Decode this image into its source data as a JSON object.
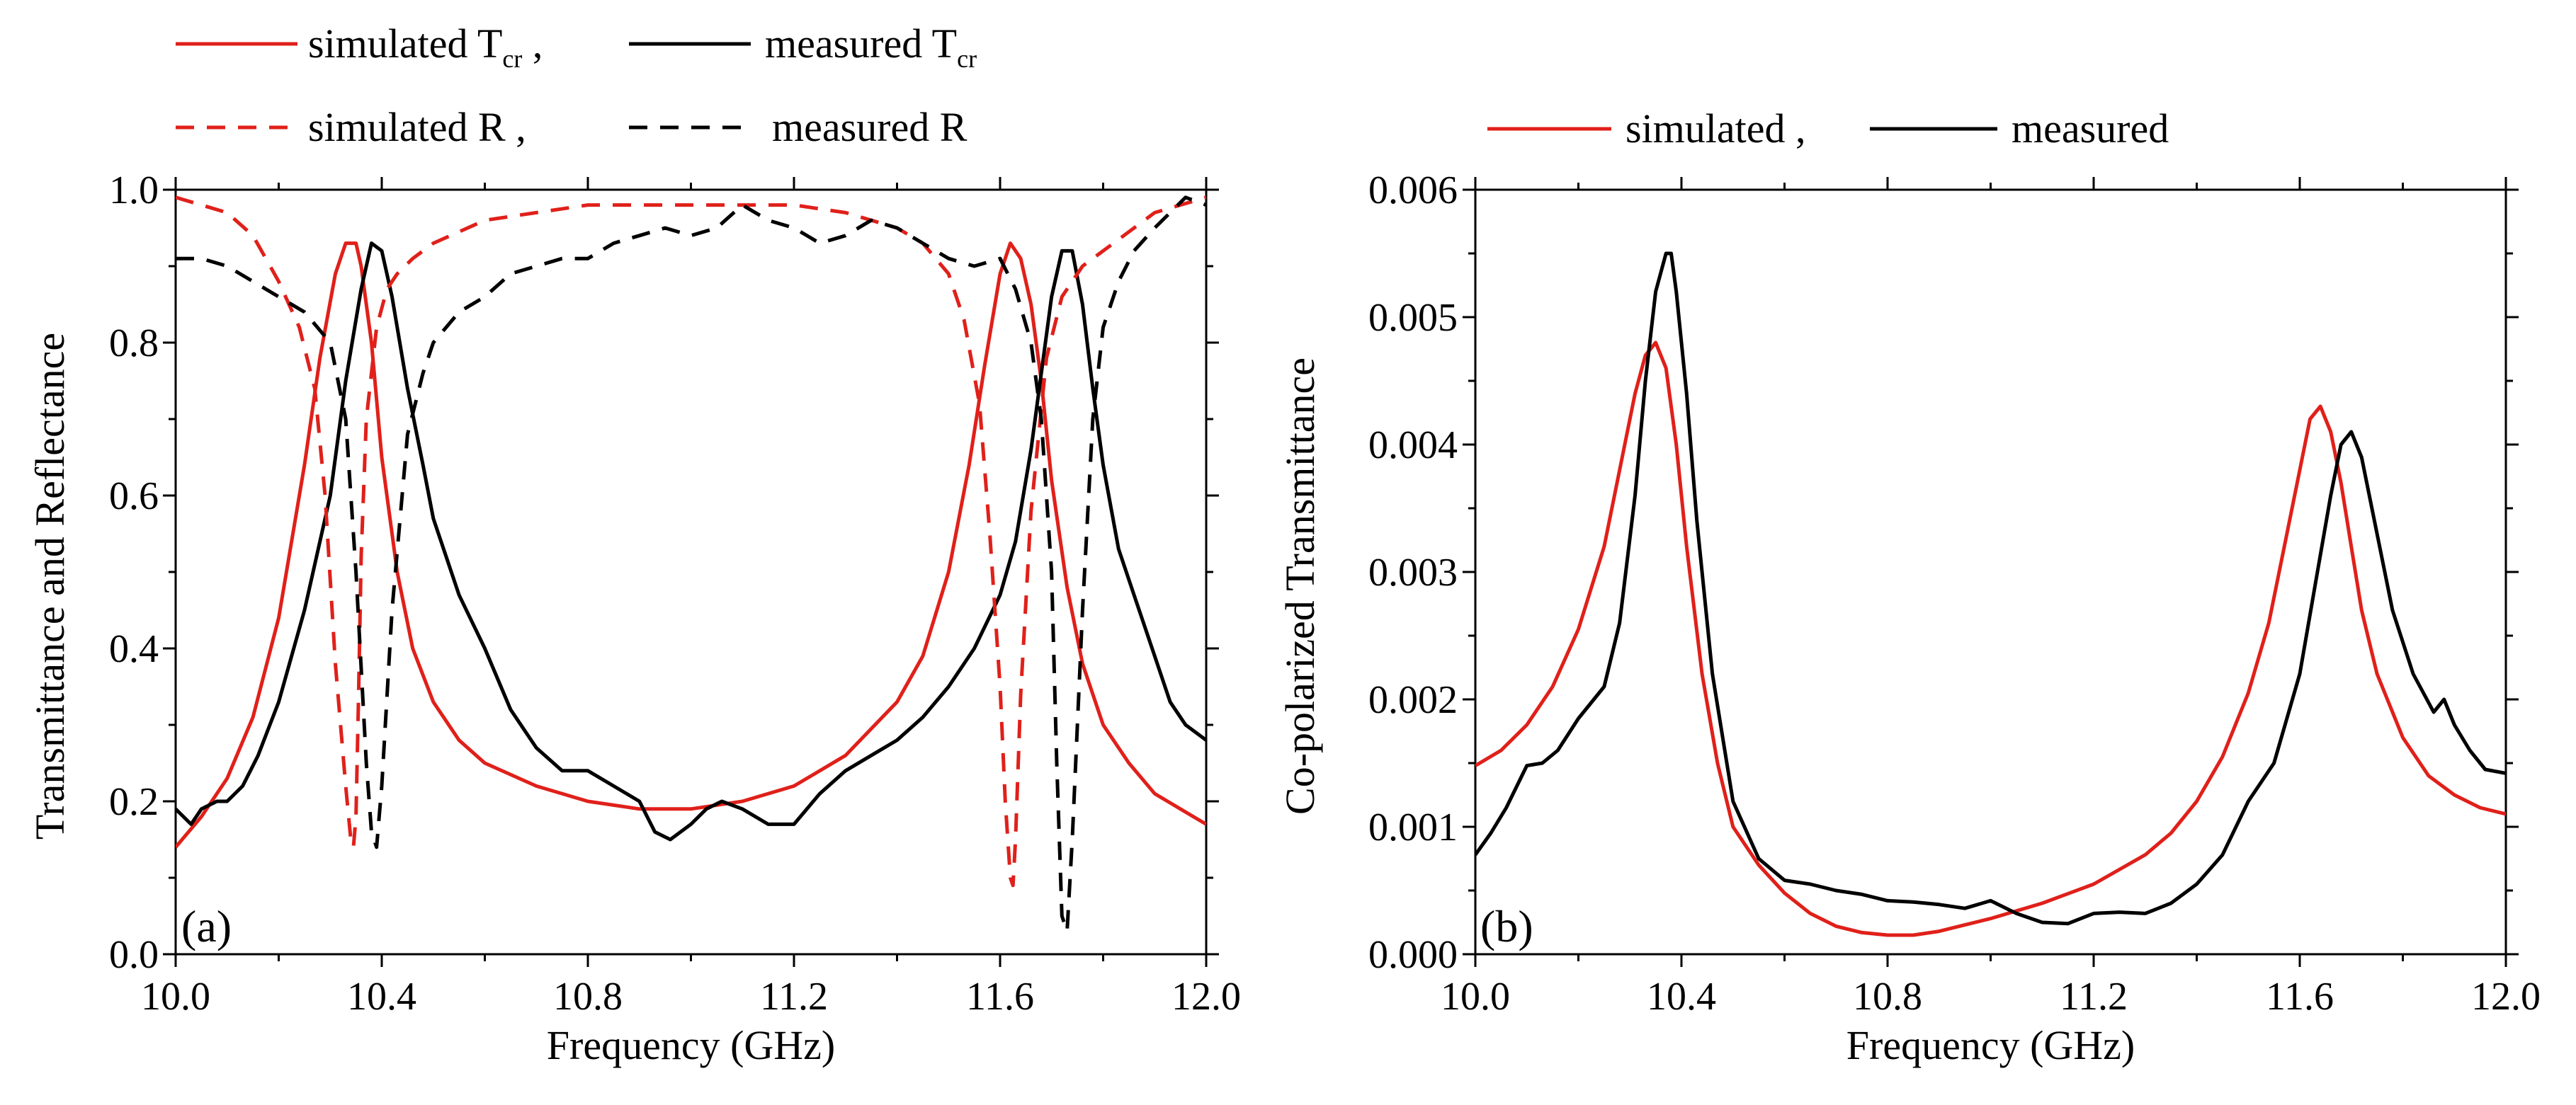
{
  "chart_data": [
    {
      "panel": "(a)",
      "type": "line",
      "xlabel": "Frequency (GHz)",
      "ylabel": "Transmittance and Reflectance",
      "xlim": [
        10.0,
        12.0
      ],
      "ylim": [
        0.0,
        1.0
      ],
      "x_ticks": [
        "10.0",
        "10.4",
        "10.8",
        "11.2",
        "11.6",
        "12.0"
      ],
      "y_ticks": [
        "0.0",
        "0.2",
        "0.4",
        "0.6",
        "0.8",
        "1.0"
      ],
      "legend": {
        "placement": "above-top",
        "entries": [
          {
            "label": "simulated T",
            "sub": "cr",
            "suffix": " ,",
            "color": "#e0201a",
            "dash": "solid"
          },
          {
            "label": "measured T",
            "sub": "cr",
            "suffix": "",
            "color": "#000000",
            "dash": "solid"
          },
          {
            "label": "simulated R",
            "sub": "",
            "suffix": "   ,",
            "color": "#e0201a",
            "dash": "dashed"
          },
          {
            "label": "measured R",
            "sub": "",
            "suffix": "",
            "color": "#000000",
            "dash": "dashed"
          }
        ]
      },
      "series": [
        {
          "name": "simulated Tcr",
          "color": "#e0201a",
          "dash": "solid",
          "x": [
            10.0,
            10.05,
            10.1,
            10.15,
            10.2,
            10.25,
            10.28,
            10.31,
            10.33,
            10.35,
            10.36,
            10.38,
            10.4,
            10.43,
            10.46,
            10.5,
            10.55,
            10.6,
            10.7,
            10.8,
            10.9,
            11.0,
            11.1,
            11.2,
            11.3,
            11.4,
            11.45,
            11.5,
            11.54,
            11.57,
            11.6,
            11.62,
            11.64,
            11.66,
            11.68,
            11.7,
            11.73,
            11.76,
            11.8,
            11.85,
            11.9,
            11.95,
            12.0
          ],
          "y": [
            0.14,
            0.18,
            0.23,
            0.31,
            0.44,
            0.64,
            0.78,
            0.89,
            0.93,
            0.93,
            0.9,
            0.8,
            0.65,
            0.5,
            0.4,
            0.33,
            0.28,
            0.25,
            0.22,
            0.2,
            0.19,
            0.19,
            0.2,
            0.22,
            0.26,
            0.33,
            0.39,
            0.5,
            0.64,
            0.77,
            0.89,
            0.93,
            0.91,
            0.85,
            0.75,
            0.62,
            0.48,
            0.38,
            0.3,
            0.25,
            0.21,
            0.19,
            0.17
          ]
        },
        {
          "name": "measured Tcr",
          "color": "#000000",
          "dash": "solid",
          "x": [
            10.0,
            10.03,
            10.05,
            10.08,
            10.1,
            10.13,
            10.16,
            10.2,
            10.25,
            10.3,
            10.33,
            10.36,
            10.38,
            10.4,
            10.42,
            10.45,
            10.48,
            10.5,
            10.55,
            10.6,
            10.65,
            10.7,
            10.75,
            10.8,
            10.85,
            10.9,
            10.93,
            10.96,
            11.0,
            11.03,
            11.06,
            11.1,
            11.15,
            11.2,
            11.25,
            11.3,
            11.35,
            11.4,
            11.45,
            11.5,
            11.55,
            11.6,
            11.63,
            11.66,
            11.68,
            11.7,
            11.72,
            11.74,
            11.76,
            11.78,
            11.8,
            11.83,
            11.86,
            11.9,
            11.93,
            11.96,
            12.0
          ],
          "y": [
            0.19,
            0.17,
            0.19,
            0.2,
            0.2,
            0.22,
            0.26,
            0.33,
            0.45,
            0.6,
            0.75,
            0.87,
            0.93,
            0.92,
            0.86,
            0.74,
            0.64,
            0.57,
            0.47,
            0.4,
            0.32,
            0.27,
            0.24,
            0.24,
            0.22,
            0.2,
            0.16,
            0.15,
            0.17,
            0.19,
            0.2,
            0.19,
            0.17,
            0.17,
            0.21,
            0.24,
            0.26,
            0.28,
            0.31,
            0.35,
            0.4,
            0.47,
            0.54,
            0.66,
            0.76,
            0.86,
            0.92,
            0.92,
            0.85,
            0.74,
            0.64,
            0.53,
            0.47,
            0.39,
            0.33,
            0.3,
            0.28
          ]
        },
        {
          "name": "simulated R",
          "color": "#e0201a",
          "dash": "dashed",
          "x": [
            10.0,
            10.1,
            10.15,
            10.2,
            10.24,
            10.27,
            10.29,
            10.31,
            10.33,
            10.34,
            10.345,
            10.35,
            10.355,
            10.36,
            10.37,
            10.39,
            10.41,
            10.43,
            10.46,
            10.5,
            10.6,
            10.7,
            10.8,
            10.9,
            11.0,
            11.1,
            11.2,
            11.3,
            11.4,
            11.45,
            11.5,
            11.53,
            11.56,
            11.58,
            11.6,
            11.61,
            11.62,
            11.625,
            11.63,
            11.64,
            11.66,
            11.69,
            11.72,
            11.76,
            11.8,
            11.9,
            12.0
          ],
          "y": [
            0.99,
            0.97,
            0.94,
            0.88,
            0.82,
            0.74,
            0.6,
            0.38,
            0.22,
            0.15,
            0.14,
            0.18,
            0.34,
            0.52,
            0.7,
            0.82,
            0.87,
            0.89,
            0.91,
            0.93,
            0.96,
            0.97,
            0.98,
            0.98,
            0.98,
            0.98,
            0.98,
            0.97,
            0.95,
            0.93,
            0.89,
            0.83,
            0.72,
            0.55,
            0.35,
            0.2,
            0.1,
            0.09,
            0.15,
            0.34,
            0.58,
            0.78,
            0.86,
            0.9,
            0.92,
            0.97,
            0.99
          ]
        },
        {
          "name": "measured R",
          "color": "#000000",
          "dash": "dashed",
          "x": [
            10.0,
            10.05,
            10.1,
            10.15,
            10.2,
            10.25,
            10.3,
            10.33,
            10.35,
            10.37,
            10.38,
            10.39,
            10.4,
            10.42,
            10.45,
            10.48,
            10.5,
            10.55,
            10.6,
            10.65,
            10.7,
            10.75,
            10.8,
            10.85,
            10.9,
            10.95,
            11.0,
            11.05,
            11.1,
            11.15,
            11.2,
            11.25,
            11.3,
            11.35,
            11.4,
            11.45,
            11.5,
            11.55,
            11.6,
            11.63,
            11.66,
            11.68,
            11.7,
            11.71,
            11.72,
            11.73,
            11.74,
            11.76,
            11.78,
            11.8,
            11.83,
            11.86,
            11.9,
            11.93,
            11.96,
            12.0
          ],
          "y": [
            0.91,
            0.91,
            0.9,
            0.88,
            0.86,
            0.84,
            0.8,
            0.7,
            0.5,
            0.25,
            0.16,
            0.14,
            0.22,
            0.45,
            0.68,
            0.76,
            0.8,
            0.84,
            0.86,
            0.89,
            0.9,
            0.91,
            0.91,
            0.93,
            0.94,
            0.95,
            0.94,
            0.95,
            0.98,
            0.96,
            0.95,
            0.93,
            0.94,
            0.96,
            0.95,
            0.93,
            0.91,
            0.9,
            0.91,
            0.87,
            0.8,
            0.7,
            0.5,
            0.25,
            0.05,
            0.03,
            0.15,
            0.45,
            0.7,
            0.82,
            0.88,
            0.92,
            0.95,
            0.97,
            0.99,
            0.98
          ]
        }
      ]
    },
    {
      "panel": "(b)",
      "type": "line",
      "xlabel": "Frequency (GHz)",
      "ylabel": "Co-polarized Transmittance",
      "xlim": [
        10.0,
        12.0
      ],
      "ylim": [
        0.0,
        0.006
      ],
      "x_ticks": [
        "10.0",
        "10.4",
        "10.8",
        "11.2",
        "11.6",
        "12.0"
      ],
      "y_ticks": [
        "0.000",
        "0.001",
        "0.002",
        "0.003",
        "0.004",
        "0.005",
        "0.006"
      ],
      "legend": {
        "placement": "above-top",
        "entries": [
          {
            "label": "simulated",
            "sub": "",
            "suffix": " ,",
            "color": "#e0201a",
            "dash": "solid"
          },
          {
            "label": "measured",
            "sub": "",
            "suffix": "",
            "color": "#000000",
            "dash": "solid"
          }
        ]
      },
      "series": [
        {
          "name": "simulated",
          "color": "#e0201a",
          "dash": "solid",
          "x": [
            10.0,
            10.05,
            10.1,
            10.15,
            10.2,
            10.25,
            10.28,
            10.31,
            10.33,
            10.35,
            10.37,
            10.39,
            10.41,
            10.44,
            10.47,
            10.5,
            10.55,
            10.6,
            10.65,
            10.7,
            10.75,
            10.8,
            10.85,
            10.9,
            10.95,
            11.0,
            11.1,
            11.2,
            11.3,
            11.35,
            11.4,
            11.45,
            11.5,
            11.54,
            11.57,
            11.6,
            11.62,
            11.64,
            11.66,
            11.68,
            11.7,
            11.72,
            11.75,
            11.8,
            11.85,
            11.9,
            11.95,
            12.0
          ],
          "y": [
            0.00148,
            0.0016,
            0.0018,
            0.0021,
            0.00255,
            0.0032,
            0.0038,
            0.0044,
            0.0047,
            0.0048,
            0.0046,
            0.004,
            0.0032,
            0.0022,
            0.0015,
            0.001,
            0.0007,
            0.00048,
            0.00032,
            0.00022,
            0.00017,
            0.00015,
            0.00015,
            0.00018,
            0.00023,
            0.00028,
            0.0004,
            0.00055,
            0.00078,
            0.00095,
            0.0012,
            0.00155,
            0.00205,
            0.0026,
            0.0032,
            0.0038,
            0.0042,
            0.0043,
            0.0041,
            0.0037,
            0.0032,
            0.0027,
            0.0022,
            0.0017,
            0.0014,
            0.00125,
            0.00115,
            0.0011
          ]
        },
        {
          "name": "measured",
          "color": "#000000",
          "dash": "solid",
          "x": [
            10.0,
            10.03,
            10.06,
            10.1,
            10.13,
            10.16,
            10.2,
            10.25,
            10.28,
            10.31,
            10.33,
            10.35,
            10.37,
            10.38,
            10.39,
            10.41,
            10.43,
            10.46,
            10.5,
            10.55,
            10.6,
            10.65,
            10.7,
            10.75,
            10.8,
            10.85,
            10.9,
            10.95,
            11.0,
            11.05,
            11.1,
            11.15,
            11.2,
            11.25,
            11.3,
            11.35,
            11.4,
            11.45,
            11.5,
            11.55,
            11.6,
            11.63,
            11.66,
            11.68,
            11.7,
            11.72,
            11.75,
            11.78,
            11.82,
            11.86,
            11.88,
            11.9,
            11.93,
            11.96,
            12.0
          ],
          "y": [
            0.00078,
            0.00095,
            0.00115,
            0.00148,
            0.0015,
            0.0016,
            0.00185,
            0.0021,
            0.0026,
            0.0036,
            0.0045,
            0.0052,
            0.0055,
            0.0055,
            0.0052,
            0.0044,
            0.0034,
            0.0022,
            0.0012,
            0.00075,
            0.00058,
            0.00055,
            0.0005,
            0.00047,
            0.00042,
            0.00041,
            0.00039,
            0.00036,
            0.00042,
            0.00032,
            0.00025,
            0.00024,
            0.00032,
            0.00033,
            0.00032,
            0.0004,
            0.00055,
            0.00078,
            0.0012,
            0.0015,
            0.0022,
            0.0029,
            0.0036,
            0.004,
            0.0041,
            0.0039,
            0.0033,
            0.0027,
            0.0022,
            0.0019,
            0.002,
            0.0018,
            0.0016,
            0.00145,
            0.00142
          ]
        }
      ]
    }
  ]
}
